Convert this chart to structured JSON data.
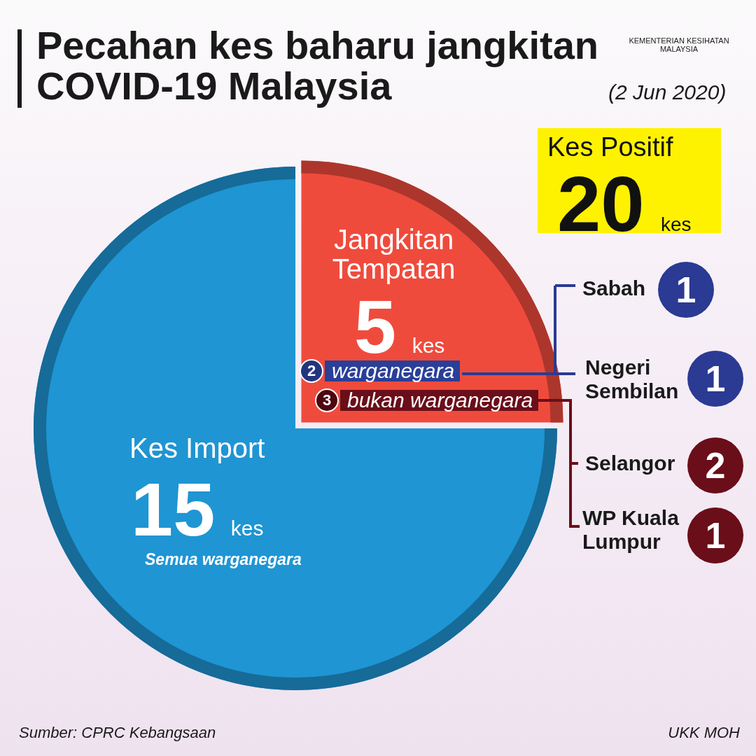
{
  "chart_data": {
    "type": "pie",
    "title": "Pecahan kes baharu jangkitan COVID-19 Malaysia",
    "subtitle": "(2 Jun 2020)",
    "categories": [
      "Jangkitan Tempatan",
      "Kes Import"
    ],
    "values": [
      5,
      15
    ],
    "colors": [
      "#ef4b3d",
      "#1f95d3"
    ],
    "value_labels": [
      "5 kes",
      "15 kes"
    ],
    "annotations": [
      "KEMENTERIAN KESIHATAN MALAYSIA",
      "Kes Positif",
      "20 kes",
      "2 warganegara",
      "3 bukan warganegara",
      "Semua warganegara",
      "Sabah 1",
      "Negeri Sembilan 1",
      "Selangor 2",
      "WP Kuala Lumpur 1",
      "Sumber: CPRC Kebangsaan",
      "UKK MOH"
    ]
  }
}
